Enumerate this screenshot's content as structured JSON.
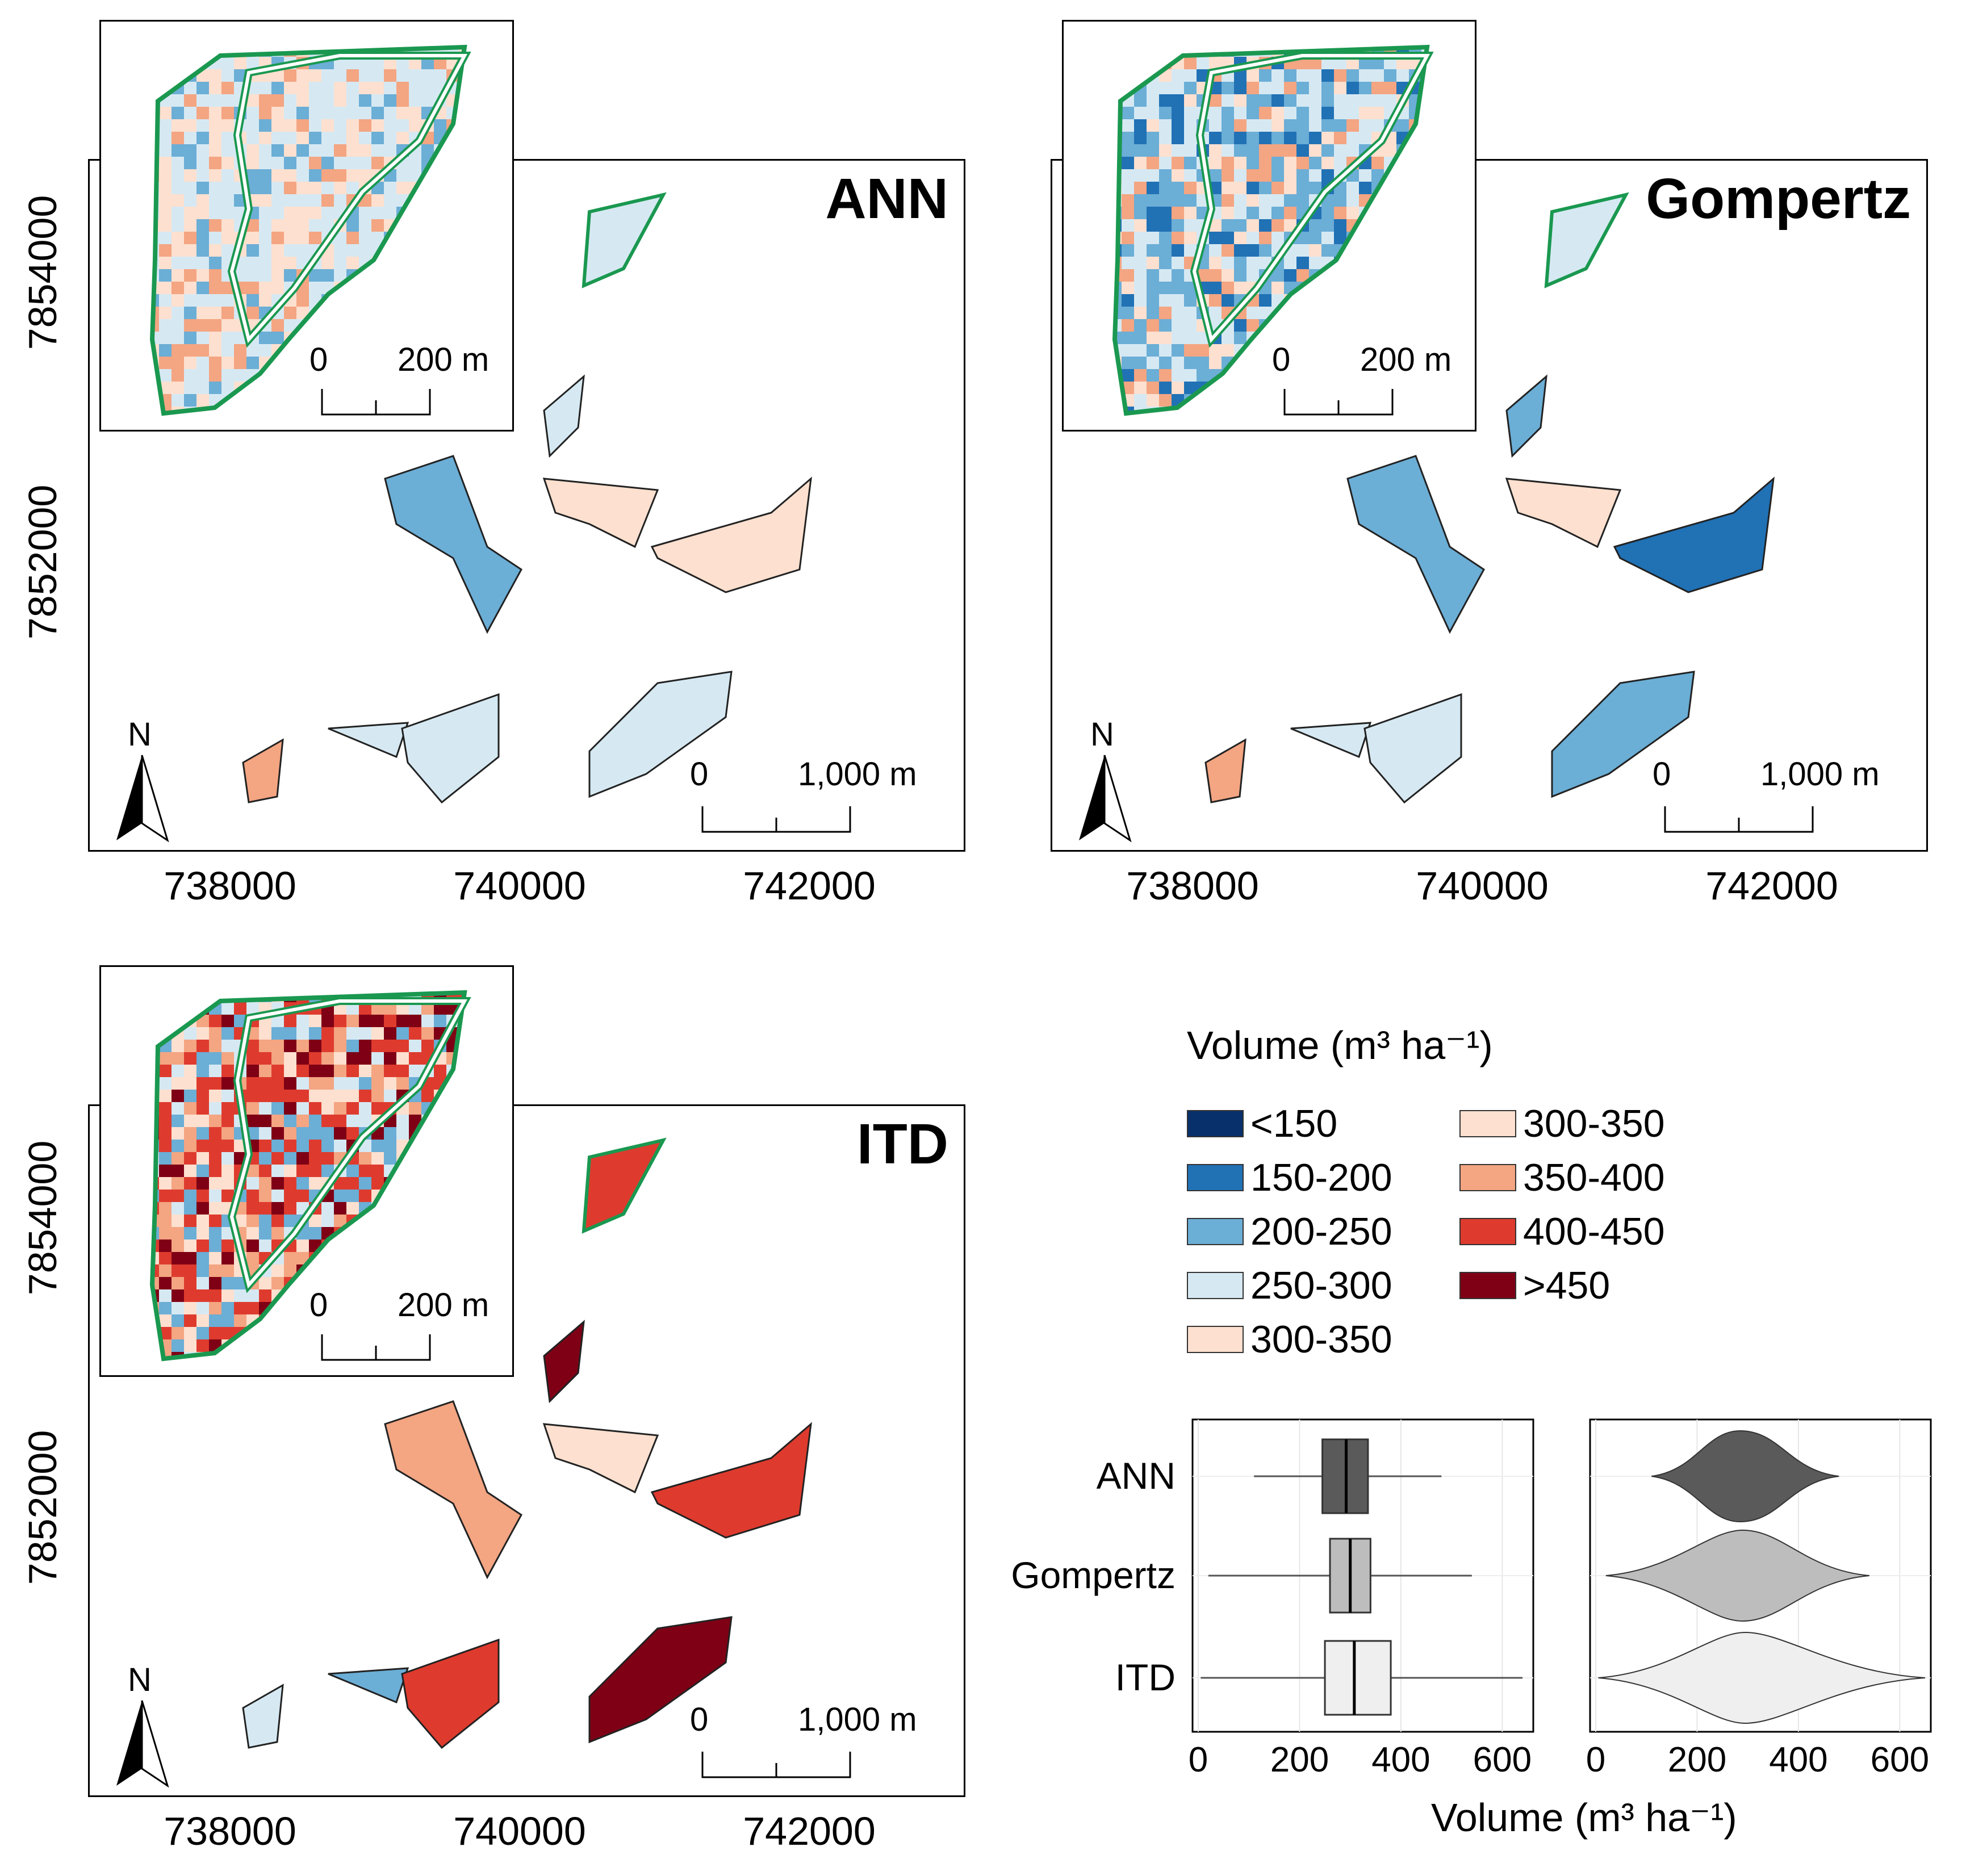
{
  "panels": [
    {
      "title": "ANN",
      "x_ticks": [
        "738000",
        "740000",
        "742000"
      ],
      "y_ticks": [
        "7854000",
        "7852000"
      ],
      "inset_scale": {
        "zero": "0",
        "dist": "200 m"
      },
      "map_scale": {
        "zero": "0",
        "dist": "1,000 m"
      },
      "north": "N"
    },
    {
      "title": "Gompertz",
      "x_ticks": [
        "738000",
        "740000",
        "742000"
      ],
      "y_ticks": [],
      "inset_scale": {
        "zero": "0",
        "dist": "200 m"
      },
      "map_scale": {
        "zero": "0",
        "dist": "1,000 m"
      },
      "north": "N"
    },
    {
      "title": "ITD",
      "x_ticks": [
        "738000",
        "740000",
        "742000"
      ],
      "y_ticks": [
        "7854000",
        "7852000"
      ],
      "inset_scale": {
        "zero": "0",
        "dist": "200 m"
      },
      "map_scale": {
        "zero": "0",
        "dist": "1,000 m"
      },
      "north": "N"
    }
  ],
  "legend": {
    "title": "Volume (m³ ha⁻¹)",
    "items": [
      {
        "label": "<150",
        "color": "#08306b"
      },
      {
        "label": "150-200",
        "color": "#2171b5"
      },
      {
        "label": "200-250",
        "color": "#6baed6"
      },
      {
        "label": "250-300",
        "color": "#d6e9f3"
      },
      {
        "label": "300-350",
        "color": "#fde0cf"
      },
      {
        "label": "300-350",
        "color": "#fde0cf"
      },
      {
        "label": "350-400",
        "color": "#f4a582"
      },
      {
        "label": "400-450",
        "color": "#de3b2e"
      },
      {
        "label": ">450",
        "color": "#7f0015"
      }
    ]
  },
  "chart_data": [
    {
      "type": "boxplot",
      "categories": [
        "ANN",
        "Gompertz",
        "ITD"
      ],
      "xlabel": "Volume (m³ ha⁻¹)",
      "x_ticks": [
        "0",
        "200",
        "400",
        "600"
      ],
      "xlim": [
        0,
        650
      ],
      "series": [
        {
          "name": "ANN",
          "q1": 245,
          "median": 292,
          "q3": 335,
          "whisker_low": 110,
          "whisker_high": 480,
          "fill": "#5a5a5a"
        },
        {
          "name": "Gompertz",
          "q1": 260,
          "median": 300,
          "q3": 340,
          "whisker_low": 20,
          "whisker_high": 540,
          "fill": "#bdbdbd"
        },
        {
          "name": "ITD",
          "q1": 250,
          "median": 308,
          "q3": 380,
          "whisker_low": 5,
          "whisker_high": 640,
          "fill": "#efefef"
        }
      ]
    },
    {
      "type": "violin",
      "categories": [
        "ANN",
        "Gompertz",
        "ITD"
      ],
      "x_ticks": [
        "0",
        "200",
        "400",
        "600"
      ],
      "xlim": [
        0,
        650
      ],
      "series": [
        {
          "name": "ANN",
          "min": 110,
          "mode": 285,
          "max": 480,
          "fill": "#5a5a5a"
        },
        {
          "name": "Gompertz",
          "min": 20,
          "mode": 290,
          "max": 540,
          "fill": "#bdbdbd"
        },
        {
          "name": "ITD",
          "min": 5,
          "mode": 295,
          "max": 650,
          "fill": "#efefef"
        }
      ]
    }
  ]
}
